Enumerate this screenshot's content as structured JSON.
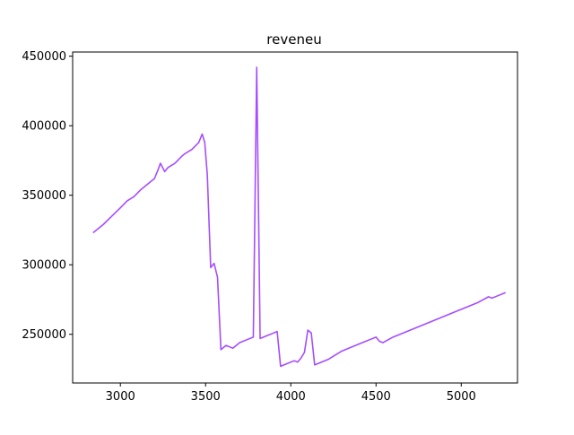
{
  "chart_data": {
    "type": "line",
    "title": "reveneu",
    "xlabel": "",
    "ylabel": "",
    "xlim": [
      2720,
      5330
    ],
    "ylim": [
      215000,
      453000
    ],
    "x_ticks": [
      3000,
      3500,
      4000,
      4500,
      5000
    ],
    "y_ticks": [
      250000,
      300000,
      350000,
      400000,
      450000
    ],
    "x_tick_labels": [
      "3000",
      "3500",
      "4000",
      "4500",
      "5000"
    ],
    "y_tick_labels": [
      "250000",
      "300000",
      "350000",
      "400000",
      "450000"
    ],
    "grid": false,
    "legend": "none",
    "series": [
      {
        "color": "#a64dff",
        "x": [
          2840,
          2900,
          2950,
          3000,
          3040,
          3080,
          3120,
          3160,
          3200,
          3220,
          3235,
          3260,
          3280,
          3320,
          3360,
          3380,
          3420,
          3460,
          3480,
          3495,
          3510,
          3530,
          3550,
          3570,
          3590,
          3620,
          3640,
          3660,
          3700,
          3740,
          3780,
          3800,
          3820,
          3860,
          3900,
          3920,
          3940,
          3980,
          4020,
          4040,
          4060,
          4080,
          4100,
          4120,
          4140,
          4180,
          4220,
          4260,
          4300,
          4340,
          4380,
          4420,
          4460,
          4500,
          4520,
          4540,
          4600,
          4700,
          4800,
          4900,
          5000,
          5100,
          5160,
          5180,
          5220,
          5260
        ],
        "y": [
          323000,
          329000,
          335000,
          341000,
          346000,
          349000,
          354000,
          358000,
          362000,
          368000,
          373000,
          367000,
          370000,
          373000,
          378000,
          380000,
          383000,
          388000,
          394000,
          388000,
          365000,
          298000,
          301000,
          291000,
          239000,
          242000,
          241000,
          240000,
          244000,
          246000,
          248000,
          442000,
          247000,
          249000,
          251000,
          252000,
          227000,
          229000,
          231000,
          230000,
          233000,
          237000,
          253000,
          251000,
          228000,
          230000,
          232000,
          235000,
          238000,
          240000,
          242000,
          244000,
          246000,
          248000,
          245000,
          244000,
          248000,
          253000,
          258000,
          263000,
          268000,
          273000,
          277000,
          276000,
          278000,
          280000
        ]
      }
    ]
  }
}
